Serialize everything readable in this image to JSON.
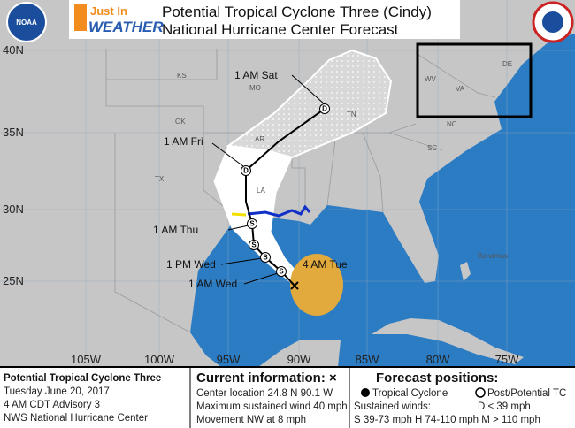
{
  "header": {
    "logo_top": "Just In",
    "logo_bottom": "WEATHER",
    "noaa": "NOAA",
    "title": "Potential Tropical Cyclone Three (Cindy)",
    "subtitle": "National Hurricane Center Forecast"
  },
  "map": {
    "lat_labels": [
      "40N",
      "35N",
      "30N",
      "25N"
    ],
    "lon_labels": [
      "105W",
      "100W",
      "95W",
      "90W",
      "85W",
      "80W",
      "75W"
    ],
    "regions": [
      "KS",
      "MO",
      "OK",
      "AR",
      "TN",
      "LA",
      "TX",
      "NC",
      "SC",
      "VA",
      "WV",
      "DE",
      "Bahamas"
    ],
    "forecast_times": [
      "1 AM Sat",
      "1 AM Fri",
      "1 AM Thu",
      "1 PM Wed",
      "1 AM Wed",
      "4 AM Tue"
    ],
    "track_points": [
      "S",
      "S",
      "S",
      "S",
      "D",
      "D"
    ]
  },
  "info": {
    "left": [
      "Potential Tropical Cyclone Three",
      "Tuesday June 20, 2017",
      "4 AM CDT Advisory 3",
      "NWS National Hurricane Center"
    ],
    "current_title": "Current information: ×",
    "current": [
      "Center location 24.8 N 90.1 W",
      "Maximum sustained wind 40 mph",
      "Movement NW at 8 mph"
    ],
    "forecast_title": "Forecast positions:",
    "tropical": "Tropical Cyclone",
    "post": "Post/Potential TC",
    "winds": "Sustained winds:",
    "d_winds": "D < 39 mph",
    "scale": "S 39-73 mph  H 74-110 mph  M > 110 mph"
  }
}
